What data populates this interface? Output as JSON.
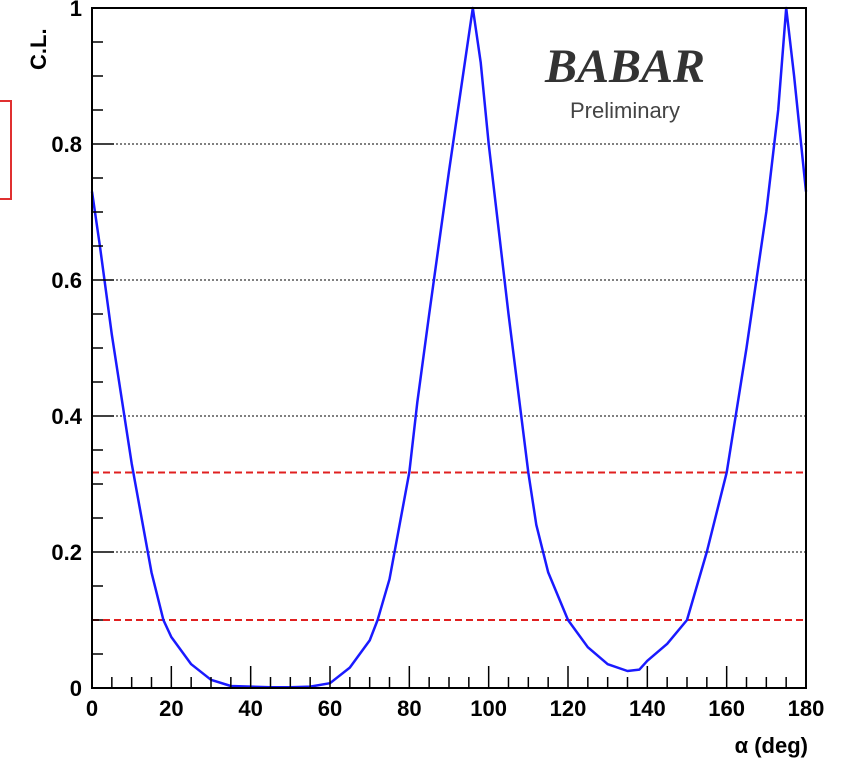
{
  "chart_data": {
    "type": "line",
    "xlabel": "α (deg)",
    "ylabel": "C.L.",
    "xlim": [
      0,
      180
    ],
    "ylim": [
      0,
      1
    ],
    "x_ticks": [
      "0",
      "20",
      "40",
      "60",
      "80",
      "100",
      "120",
      "140",
      "160",
      "180"
    ],
    "y_ticks": [
      "0",
      "0.2",
      "0.4",
      "0.6",
      "0.8",
      "1"
    ],
    "grid": "horizontal dotted",
    "reference_lines": [
      {
        "y": 0.317,
        "style": "dashed",
        "color": "#e02020"
      },
      {
        "y": 0.1,
        "style": "dashed",
        "color": "#e02020"
      }
    ],
    "series": [
      {
        "color": "#1a1aff",
        "x": [
          0,
          2,
          5,
          10,
          15,
          18,
          20,
          25,
          30,
          35,
          40,
          45,
          50,
          55,
          60,
          65,
          70,
          72,
          75,
          80,
          82,
          85,
          90,
          93,
          96,
          98,
          100,
          105,
          110,
          112,
          115,
          120,
          125,
          130,
          135,
          138,
          140,
          145,
          150,
          155,
          160,
          165,
          170,
          173,
          175,
          177,
          180
        ],
        "y": [
          0.73,
          0.65,
          0.52,
          0.33,
          0.17,
          0.1,
          0.075,
          0.035,
          0.012,
          0.003,
          0.002,
          0.001,
          0.001,
          0.002,
          0.007,
          0.03,
          0.07,
          0.1,
          0.16,
          0.317,
          0.42,
          0.55,
          0.76,
          0.88,
          1.0,
          0.92,
          0.8,
          0.55,
          0.317,
          0.24,
          0.17,
          0.1,
          0.06,
          0.035,
          0.025,
          0.027,
          0.04,
          0.065,
          0.1,
          0.2,
          0.317,
          0.5,
          0.7,
          0.85,
          1.0,
          0.9,
          0.73
        ]
      }
    ],
    "annotations": [
      "BABAR",
      "Preliminary"
    ]
  },
  "logo": {
    "text": "BABAR",
    "subtitle": "Preliminary"
  },
  "colors": {
    "curve": "#1a1aff",
    "reference": "#e02020",
    "grid": "#000000"
  }
}
